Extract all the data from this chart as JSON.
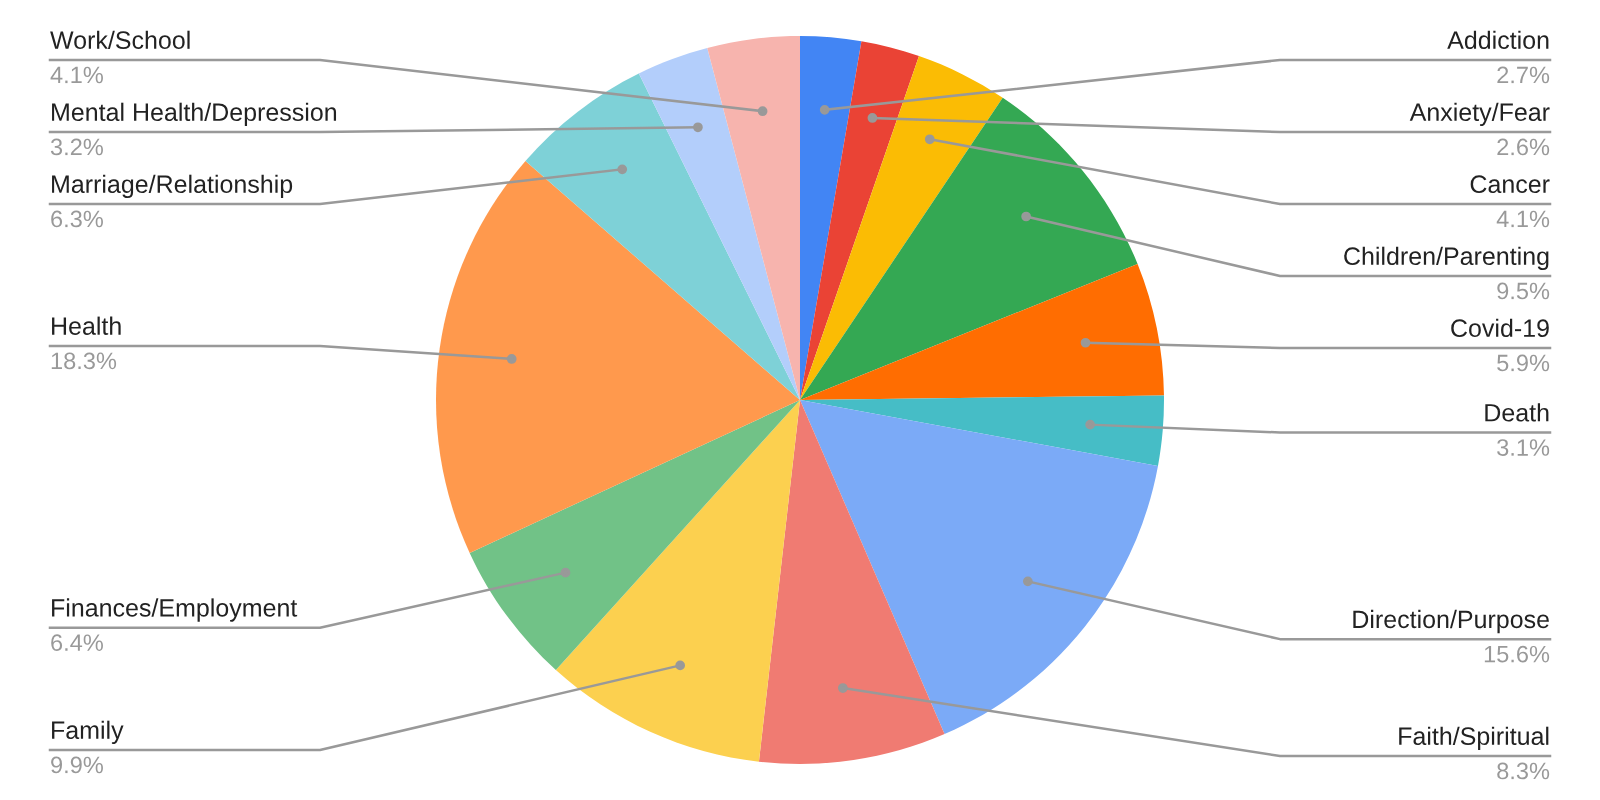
{
  "chart_data": {
    "type": "pie",
    "categories": [
      "Addiction",
      "Anxiety/Fear",
      "Cancer",
      "Children/Parenting",
      "Covid-19",
      "Death",
      "Direction/Purpose",
      "Faith/Spiritual",
      "Family",
      "Finances/Employment",
      "Health",
      "Marriage/Relationship",
      "Mental Health/Depression",
      "Work/School"
    ],
    "values": [
      2.7,
      2.6,
      4.1,
      9.5,
      5.9,
      3.1,
      15.6,
      8.3,
      9.9,
      6.4,
      18.3,
      6.3,
      3.2,
      4.1
    ],
    "colors": [
      "#4285f4",
      "#ea4335",
      "#fbbc04",
      "#34a853",
      "#ff6d01",
      "#46bdc6",
      "#7baaf7",
      "#f07b72",
      "#fcd04f",
      "#71c287",
      "#ff994d",
      "#7ed1d7",
      "#b3cefb",
      "#f7b4ae"
    ],
    "value_labels": [
      "2.7%",
      "2.6%",
      "4.1%",
      "9.5%",
      "5.9%",
      "3.1%",
      "15.6%",
      "8.3%",
      "9.9%",
      "6.4%",
      "18.3%",
      "6.3%",
      "3.2%",
      "4.1%"
    ]
  }
}
